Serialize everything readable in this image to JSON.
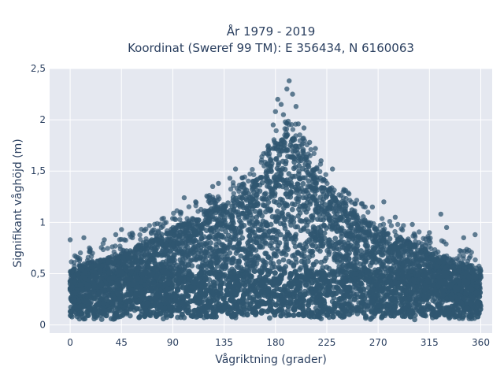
{
  "chart_data": {
    "type": "scatter",
    "title": [
      "År 1979 - 2019",
      "Koordinat (Sweref 99 TM): E 356434, N 6160063"
    ],
    "xlabel": "Vågriktning (grader)",
    "ylabel": "Signifikant våghöjd (m)",
    "xlim": [
      -18,
      370
    ],
    "ylim": [
      -0.08,
      2.5
    ],
    "xticks": [
      0,
      45,
      90,
      135,
      180,
      225,
      270,
      315,
      360
    ],
    "xtick_labels": [
      "0",
      "45",
      "90",
      "135",
      "180",
      "225",
      "270",
      "315",
      "360"
    ],
    "yticks": [
      0,
      0.5,
      1,
      1.5,
      2,
      2.5
    ],
    "ytick_labels": [
      "0",
      "0,5",
      "1",
      "1,5",
      "2",
      "2,5"
    ],
    "grid": true,
    "legend": "none",
    "marker_color": "#2f5670",
    "background_color": "#e5e8f0",
    "envelope": {
      "direction": [
        0,
        20,
        45,
        60,
        75,
        90,
        110,
        135,
        150,
        165,
        180,
        190,
        200,
        210,
        225,
        240,
        255,
        270,
        290,
        315,
        340,
        360
      ],
      "typical_max": [
        0.55,
        0.62,
        0.7,
        0.78,
        0.85,
        0.95,
        1.05,
        1.2,
        1.28,
        1.45,
        1.75,
        1.85,
        1.8,
        1.6,
        1.35,
        1.2,
        1.05,
        0.95,
        0.85,
        0.72,
        0.62,
        0.55
      ],
      "min": 0.05
    },
    "outliers": [
      {
        "x": 0,
        "y": 0.83
      },
      {
        "x": 12,
        "y": 0.85
      },
      {
        "x": 30,
        "y": 0.83
      },
      {
        "x": 40,
        "y": 0.88
      },
      {
        "x": 45,
        "y": 0.93
      },
      {
        "x": 55,
        "y": 0.88
      },
      {
        "x": 65,
        "y": 0.92
      },
      {
        "x": 80,
        "y": 0.95
      },
      {
        "x": 100,
        "y": 1.24
      },
      {
        "x": 110,
        "y": 1.2
      },
      {
        "x": 125,
        "y": 1.35
      },
      {
        "x": 130,
        "y": 1.38
      },
      {
        "x": 140,
        "y": 1.43
      },
      {
        "x": 145,
        "y": 1.52
      },
      {
        "x": 150,
        "y": 1.35
      },
      {
        "x": 160,
        "y": 1.4
      },
      {
        "x": 170,
        "y": 1.55
      },
      {
        "x": 175,
        "y": 1.72
      },
      {
        "x": 178,
        "y": 1.95
      },
      {
        "x": 180,
        "y": 2.08
      },
      {
        "x": 182,
        "y": 2.2
      },
      {
        "x": 185,
        "y": 2.15
      },
      {
        "x": 187,
        "y": 2.05
      },
      {
        "x": 190,
        "y": 2.3
      },
      {
        "x": 192,
        "y": 2.38
      },
      {
        "x": 195,
        "y": 2.25
      },
      {
        "x": 198,
        "y": 2.13
      },
      {
        "x": 200,
        "y": 1.96
      },
      {
        "x": 205,
        "y": 1.92
      },
      {
        "x": 210,
        "y": 1.78
      },
      {
        "x": 215,
        "y": 1.72
      },
      {
        "x": 220,
        "y": 1.6
      },
      {
        "x": 230,
        "y": 1.52
      },
      {
        "x": 240,
        "y": 1.32
      },
      {
        "x": 250,
        "y": 1.18
      },
      {
        "x": 265,
        "y": 1.15
      },
      {
        "x": 275,
        "y": 1.2
      },
      {
        "x": 285,
        "y": 1.05
      },
      {
        "x": 300,
        "y": 0.98
      },
      {
        "x": 315,
        "y": 0.9
      },
      {
        "x": 325,
        "y": 1.08
      },
      {
        "x": 330,
        "y": 0.95
      },
      {
        "x": 345,
        "y": 0.85
      },
      {
        "x": 355,
        "y": 0.88
      }
    ]
  }
}
